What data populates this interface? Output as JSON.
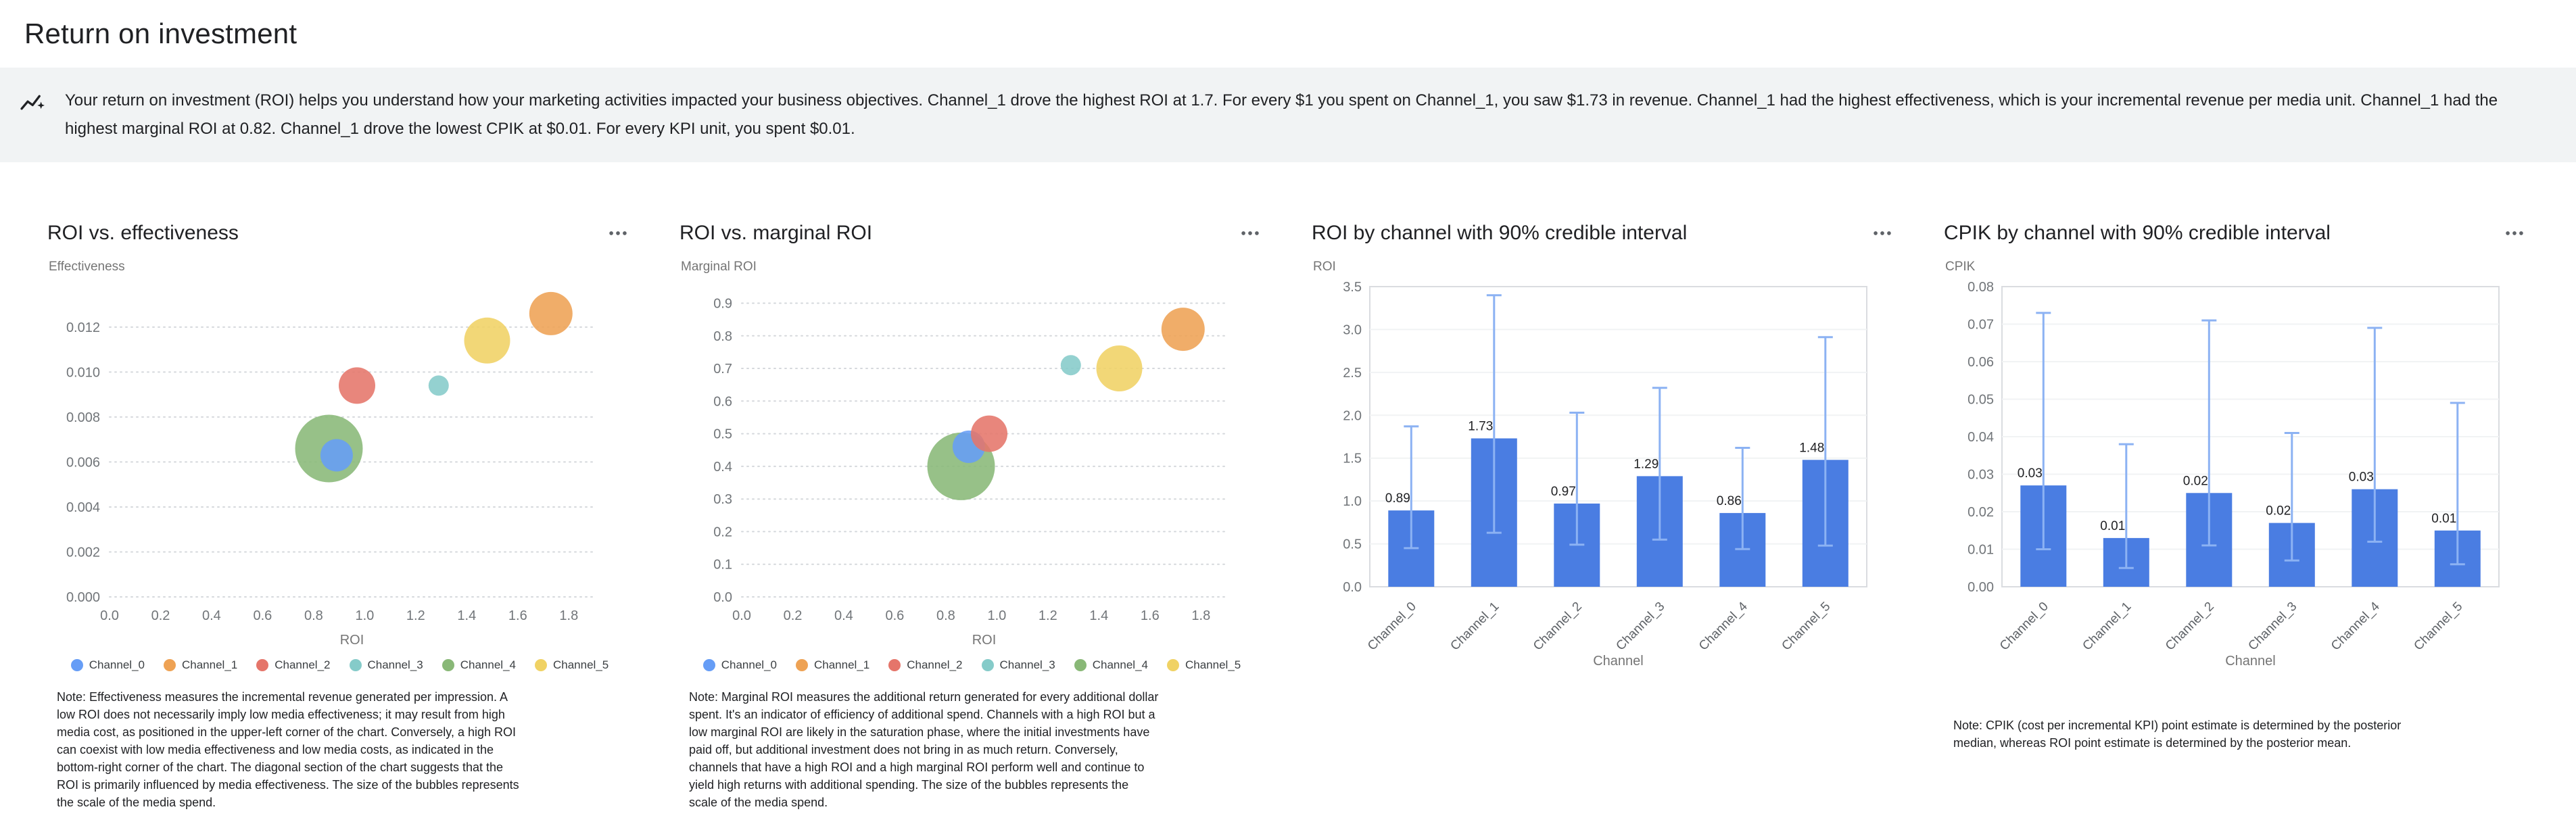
{
  "page": {
    "title": "Return on investment"
  },
  "insight_banner": {
    "text": "Your return on investment (ROI) helps you understand how your marketing activities impacted your business objectives. Channel_1 drove the highest ROI at 1.7. For every $1 you spent on Channel_1, you saw $1.73 in revenue. Channel_1 had the highest effectiveness, which is your incremental revenue per media unit. Channel_1 had the highest marginal ROI at 0.82. Channel_1 drove the lowest CPIK at $0.01. For every KPI unit, you spent $0.01."
  },
  "icons": {
    "banner": "insights-icon",
    "card_menu": "more-options-icon"
  },
  "channels": [
    "Channel_0",
    "Channel_1",
    "Channel_2",
    "Channel_3",
    "Channel_4",
    "Channel_5"
  ],
  "channel_colors": [
    "#669df6",
    "#eea254",
    "#e5756a",
    "#85cbc9",
    "#89b877",
    "#f0d264"
  ],
  "bar_color": "#4a7de2",
  "interval_color": "#8cb2f3",
  "chart_data": [
    {
      "type": "scatter",
      "title": "ROI vs. effectiveness",
      "xlabel": "ROI",
      "ylabel": "Effectiveness",
      "xlim": [
        0,
        1.9
      ],
      "ylim": [
        0,
        0.0135
      ],
      "xticks": [
        0,
        0.2,
        0.4,
        0.6,
        0.8,
        1.0,
        1.2,
        1.4,
        1.6,
        1.8
      ],
      "xtick_labels": [
        "0.0",
        "0.2",
        "0.4",
        "0.6",
        "0.8",
        "1.0",
        "1.2",
        "1.4",
        "1.6",
        "1.8"
      ],
      "yticks": [
        0,
        0.002,
        0.004,
        0.006,
        0.008,
        0.01,
        0.012
      ],
      "ytick_labels": [
        "0.000",
        "0.002",
        "0.004",
        "0.006",
        "0.008",
        "0.010",
        "0.012"
      ],
      "legend_position": "bottom",
      "grid": "horizontal-dotted",
      "points": [
        {
          "channel": "Channel_4",
          "x": 0.86,
          "y": 0.0066,
          "r": 50
        },
        {
          "channel": "Channel_0",
          "x": 0.89,
          "y": 0.0063,
          "r": 24
        },
        {
          "channel": "Channel_2",
          "x": 0.97,
          "y": 0.0094,
          "r": 27
        },
        {
          "channel": "Channel_3",
          "x": 1.29,
          "y": 0.0094,
          "r": 15
        },
        {
          "channel": "Channel_5",
          "x": 1.48,
          "y": 0.0114,
          "r": 34
        },
        {
          "channel": "Channel_1",
          "x": 1.73,
          "y": 0.0126,
          "r": 32
        }
      ],
      "note": "Note: Effectiveness measures the incremental revenue generated per impression. A low ROI does not necessarily imply low media effectiveness; it may result from high media cost, as positioned in the upper-left corner of the chart. Conversely, a high ROI can coexist with low media effectiveness and low media costs, as indicated in the bottom-right corner of the chart. The diagonal section of the chart suggests that the ROI is primarily influenced by media effectiveness. The size of the bubbles represents the scale of the media spend."
    },
    {
      "type": "scatter",
      "title": "ROI vs. marginal ROI",
      "xlabel": "ROI",
      "ylabel": "Marginal ROI",
      "xlim": [
        0,
        1.9
      ],
      "ylim": [
        0,
        0.93
      ],
      "xticks": [
        0,
        0.2,
        0.4,
        0.6,
        0.8,
        1.0,
        1.2,
        1.4,
        1.6,
        1.8
      ],
      "xtick_labels": [
        "0.0",
        "0.2",
        "0.4",
        "0.6",
        "0.8",
        "1.0",
        "1.2",
        "1.4",
        "1.6",
        "1.8"
      ],
      "yticks": [
        0,
        0.1,
        0.2,
        0.3,
        0.4,
        0.5,
        0.6,
        0.7,
        0.8,
        0.9
      ],
      "ytick_labels": [
        "0.0",
        "0.1",
        "0.2",
        "0.3",
        "0.4",
        "0.5",
        "0.6",
        "0.7",
        "0.8",
        "0.9"
      ],
      "legend_position": "bottom",
      "grid": "horizontal-dotted",
      "points": [
        {
          "channel": "Channel_4",
          "x": 0.86,
          "y": 0.4,
          "r": 50
        },
        {
          "channel": "Channel_0",
          "x": 0.89,
          "y": 0.46,
          "r": 24
        },
        {
          "channel": "Channel_2",
          "x": 0.97,
          "y": 0.5,
          "r": 27
        },
        {
          "channel": "Channel_3",
          "x": 1.29,
          "y": 0.71,
          "r": 15
        },
        {
          "channel": "Channel_5",
          "x": 1.48,
          "y": 0.7,
          "r": 34
        },
        {
          "channel": "Channel_1",
          "x": 1.73,
          "y": 0.82,
          "r": 32
        }
      ],
      "note": "Note: Marginal ROI measures the additional return generated for every additional dollar spent. It's an indicator of efficiency of additional spend. Channels with a high ROI but a low marginal ROI are likely in the saturation phase, where the initial investments have paid off, but additional investment does not bring in as much return. Conversely, channels that have a high ROI and a high marginal ROI perform well and continue to yield high returns with additional spending. The size of the bubbles represents the scale of the media spend."
    },
    {
      "type": "bar",
      "title": "ROI by channel with 90% credible interval",
      "xlabel": "Channel",
      "ylabel": "ROI",
      "categories": [
        "Channel_0",
        "Channel_1",
        "Channel_2",
        "Channel_3",
        "Channel_4",
        "Channel_5"
      ],
      "values": [
        0.89,
        1.73,
        0.97,
        1.29,
        0.86,
        1.48
      ],
      "value_labels": [
        "0.89",
        "1.73",
        "0.97",
        "1.29",
        "0.86",
        "1.48"
      ],
      "interval_low": [
        0.45,
        0.63,
        0.49,
        0.55,
        0.44,
        0.48
      ],
      "interval_high": [
        1.87,
        3.4,
        2.03,
        2.32,
        1.62,
        2.91
      ],
      "ylim": [
        0,
        3.5
      ],
      "yticks": [
        0,
        0.5,
        1.0,
        1.5,
        2.0,
        2.5,
        3.0,
        3.5
      ],
      "ytick_labels": [
        "0.0",
        "0.5",
        "1.0",
        "1.5",
        "2.0",
        "2.5",
        "3.0",
        "3.5"
      ],
      "grid": "horizontal-light"
    },
    {
      "type": "bar",
      "title": "CPIK by channel with 90% credible interval",
      "xlabel": "Channel",
      "ylabel": "CPIK",
      "categories": [
        "Channel_0",
        "Channel_1",
        "Channel_2",
        "Channel_3",
        "Channel_4",
        "Channel_5"
      ],
      "values": [
        0.027,
        0.013,
        0.025,
        0.017,
        0.026,
        0.015
      ],
      "value_labels": [
        "0.03",
        "0.01",
        "0.02",
        "0.02",
        "0.03",
        "0.01"
      ],
      "interval_low": [
        0.01,
        0.005,
        0.011,
        0.007,
        0.012,
        0.006
      ],
      "interval_high": [
        0.073,
        0.038,
        0.071,
        0.041,
        0.069,
        0.049
      ],
      "ylim": [
        0,
        0.08
      ],
      "yticks": [
        0,
        0.01,
        0.02,
        0.03,
        0.04,
        0.05,
        0.06,
        0.07,
        0.08
      ],
      "ytick_labels": [
        "0.00",
        "0.01",
        "0.02",
        "0.03",
        "0.04",
        "0.05",
        "0.06",
        "0.07",
        "0.08"
      ],
      "grid": "horizontal-light",
      "note": "Note: CPIK (cost per incremental KPI) point estimate is determined by the posterior median, whereas ROI point estimate is determined by the posterior mean."
    }
  ]
}
